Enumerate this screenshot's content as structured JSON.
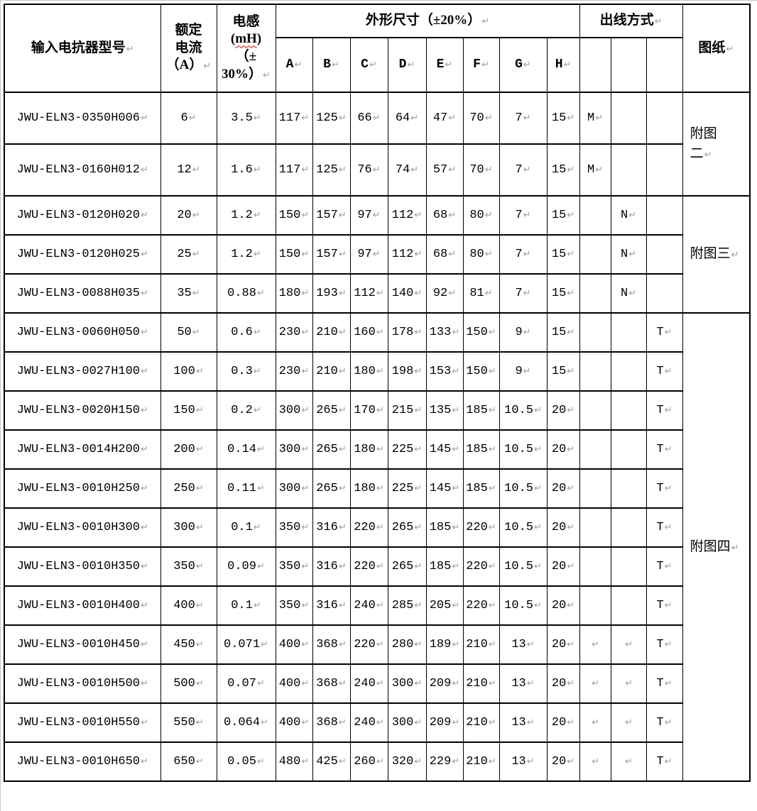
{
  "pilcrow": "↵",
  "colors": {
    "grid": "#000000",
    "mark_gray": "#9e9e9e",
    "squiggle_red": "#e00000"
  },
  "header": {
    "model": "输入电抗器型号",
    "current": {
      "l1": "额定",
      "l2": "电流",
      "l3": "（A）"
    },
    "inductance": {
      "l1": "电感",
      "l2_open": "(",
      "l2_word": "mH",
      "l2_close": ")",
      "l3": "（±",
      "l4": "30%）"
    },
    "dimensions_title": "外形尺寸（±20%）",
    "dim_cols": [
      "A",
      "B",
      "C",
      "D",
      "E",
      "F",
      "G",
      "H"
    ],
    "outlet_title": "出线方式",
    "drawing": "图纸"
  },
  "rows": [
    {
      "model": "JWU-ELN3-0350H006",
      "current": "6",
      "inductance": "3.5",
      "dims": [
        "117",
        "125",
        "66",
        "64",
        "47",
        "70",
        "7",
        "15"
      ],
      "out": [
        "M",
        "",
        ""
      ],
      "out_marks": [
        true,
        false,
        false
      ]
    },
    {
      "model": "JWU-ELN3-0160H012",
      "current": "12",
      "inductance": "1.6",
      "dims": [
        "117",
        "125",
        "76",
        "74",
        "57",
        "70",
        "7",
        "15"
      ],
      "out": [
        "M",
        "",
        ""
      ],
      "out_marks": [
        true,
        false,
        false
      ]
    },
    {
      "model": "JWU-ELN3-0120H020",
      "current": "20",
      "inductance": "1.2",
      "dims": [
        "150",
        "157",
        "97",
        "112",
        "68",
        "80",
        "7",
        "15"
      ],
      "out": [
        "",
        "N",
        ""
      ],
      "out_marks": [
        false,
        true,
        false
      ]
    },
    {
      "model": "JWU-ELN3-0120H025",
      "current": "25",
      "inductance": "1.2",
      "dims": [
        "150",
        "157",
        "97",
        "112",
        "68",
        "80",
        "7",
        "15"
      ],
      "out": [
        "",
        "N",
        ""
      ],
      "out_marks": [
        false,
        true,
        false
      ]
    },
    {
      "model": "JWU-ELN3-0088H035",
      "current": "35",
      "inductance": "0.88",
      "dims": [
        "180",
        "193",
        "112",
        "140",
        "92",
        "81",
        "7",
        "15"
      ],
      "out": [
        "",
        "N",
        ""
      ],
      "out_marks": [
        false,
        true,
        false
      ]
    },
    {
      "model": "JWU-ELN3-0060H050",
      "current": "50",
      "inductance": "0.6",
      "dims": [
        "230",
        "210",
        "160",
        "178",
        "133",
        "150",
        "9",
        "15"
      ],
      "out": [
        "",
        "",
        "T"
      ],
      "out_marks": [
        false,
        false,
        true
      ]
    },
    {
      "model": "JWU-ELN3-0027H100",
      "current": "100",
      "inductance": "0.3",
      "dims": [
        "230",
        "210",
        "180",
        "198",
        "153",
        "150",
        "9",
        "15"
      ],
      "out": [
        "",
        "",
        "T"
      ],
      "out_marks": [
        false,
        false,
        true
      ]
    },
    {
      "model": "JWU-ELN3-0020H150",
      "current": "150",
      "inductance": "0.2",
      "dims": [
        "300",
        "265",
        "170",
        "215",
        "135",
        "185",
        "10.5",
        "20"
      ],
      "out": [
        "",
        "",
        "T"
      ],
      "out_marks": [
        false,
        false,
        true
      ]
    },
    {
      "model": "JWU-ELN3-0014H200",
      "current": "200",
      "inductance": "0.14",
      "dims": [
        "300",
        "265",
        "180",
        "225",
        "145",
        "185",
        "10.5",
        "20"
      ],
      "out": [
        "",
        "",
        "T"
      ],
      "out_marks": [
        false,
        false,
        true
      ]
    },
    {
      "model": "JWU-ELN3-0010H250",
      "current": "250",
      "inductance": "0.11",
      "dims": [
        "300",
        "265",
        "180",
        "225",
        "145",
        "185",
        "10.5",
        "20"
      ],
      "out": [
        "",
        "",
        "T"
      ],
      "out_marks": [
        false,
        false,
        true
      ]
    },
    {
      "model": "JWU-ELN3-0010H300",
      "current": "300",
      "inductance": "0.1",
      "dims": [
        "350",
        "316",
        "220",
        "265",
        "185",
        "220",
        "10.5",
        "20"
      ],
      "out": [
        "",
        "",
        "T"
      ],
      "out_marks": [
        false,
        false,
        true
      ]
    },
    {
      "model": "JWU-ELN3-0010H350",
      "current": "350",
      "inductance": "0.09",
      "dims": [
        "350",
        "316",
        "220",
        "265",
        "185",
        "220",
        "10.5",
        "20"
      ],
      "out": [
        "",
        "",
        "T"
      ],
      "out_marks": [
        false,
        false,
        true
      ]
    },
    {
      "model": "JWU-ELN3-0010H400",
      "current": "400",
      "inductance": "0.1",
      "dims": [
        "350",
        "316",
        "240",
        "285",
        "205",
        "220",
        "10.5",
        "20"
      ],
      "out": [
        "",
        "",
        "T"
      ],
      "out_marks": [
        false,
        false,
        true
      ]
    },
    {
      "model": "JWU-ELN3-0010H450",
      "current": "450",
      "inductance": "0.071",
      "dims": [
        "400",
        "368",
        "220",
        "280",
        "189",
        "210",
        "13",
        "20"
      ],
      "out": [
        "",
        "",
        "T"
      ],
      "out_marks": [
        true,
        true,
        true
      ]
    },
    {
      "model": "JWU-ELN3-0010H500",
      "current": "500",
      "inductance": "0.07",
      "dims": [
        "400",
        "368",
        "240",
        "300",
        "209",
        "210",
        "13",
        "20"
      ],
      "out": [
        "",
        "",
        "T"
      ],
      "out_marks": [
        true,
        true,
        true
      ]
    },
    {
      "model": "JWU-ELN3-0010H550",
      "current": "550",
      "inductance": "0.064",
      "dims": [
        "400",
        "368",
        "240",
        "300",
        "209",
        "210",
        "13",
        "20"
      ],
      "out": [
        "",
        "",
        "T"
      ],
      "out_marks": [
        true,
        true,
        true
      ]
    },
    {
      "model": "JWU-ELN3-0010H650",
      "current": "650",
      "inductance": "0.05",
      "dims": [
        "480",
        "425",
        "260",
        "320",
        "229",
        "210",
        "13",
        "20"
      ],
      "out": [
        "",
        "",
        "T"
      ],
      "out_marks": [
        true,
        true,
        true
      ]
    }
  ],
  "drawing_groups": [
    {
      "start": 0,
      "span": 2,
      "lines": [
        "附图",
        "二"
      ]
    },
    {
      "start": 2,
      "span": 3,
      "lines": [
        "附图三"
      ]
    },
    {
      "start": 5,
      "span": 12,
      "lines": [
        "附图四"
      ]
    }
  ]
}
